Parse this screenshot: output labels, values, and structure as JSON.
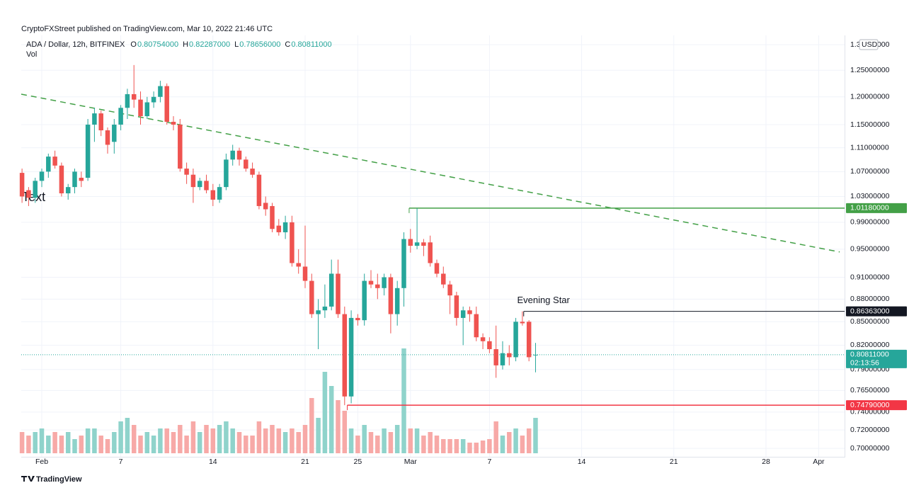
{
  "header": {
    "published": "CryptoFXStreet published on TradingView.com, Mar 10, 2022 21:46 UTC",
    "symbol": "ADA / Dollar, 12h, BITFINEX",
    "ohlc": [
      {
        "key": "O",
        "value": "0.80754000"
      },
      {
        "key": "H",
        "value": "0.82287000"
      },
      {
        "key": "L",
        "value": "0.78656000"
      },
      {
        "key": "C",
        "value": "0.80811000"
      }
    ],
    "vol": "Vol",
    "currency": "USD",
    "footer": "TradingView"
  },
  "chart_data": {
    "type": "candlestick",
    "log_scale": true,
    "grid": true,
    "up_color": "#26a69a",
    "down_color": "#ef5350",
    "up_volume_color": "#8fd3cb",
    "down_volume_color": "#f7a9a7",
    "xlim": [
      -1.56,
      60.97
    ],
    "ylim": [
      0.691,
      1.3186
    ],
    "volume_lim": [
      0,
      160
    ],
    "xticks": [
      {
        "value": 0,
        "label": "Feb"
      },
      {
        "value": 6,
        "label": "7"
      },
      {
        "value": 13,
        "label": "14"
      },
      {
        "value": 20,
        "label": "21"
      },
      {
        "value": 24,
        "label": "25"
      },
      {
        "value": 28,
        "label": "Mar"
      },
      {
        "value": 34,
        "label": "7"
      },
      {
        "value": 41,
        "label": "14"
      },
      {
        "value": 48,
        "label": "21"
      },
      {
        "value": 55,
        "label": "28"
      },
      {
        "value": 59,
        "label": "Apr"
      }
    ],
    "yticks": [
      {
        "value": 1.3,
        "label": "1.30000000"
      },
      {
        "value": 1.25,
        "label": "1.25000000"
      },
      {
        "value": 1.2,
        "label": "1.20000000"
      },
      {
        "value": 1.15,
        "label": "1.15000000"
      },
      {
        "value": 1.11,
        "label": "1.11000000"
      },
      {
        "value": 1.07,
        "label": "1.07000000"
      },
      {
        "value": 1.03,
        "label": "1.03000000"
      },
      {
        "value": 0.99,
        "label": "0.99000000"
      },
      {
        "value": 0.95,
        "label": "0.95000000"
      },
      {
        "value": 0.91,
        "label": "0.91000000"
      },
      {
        "value": 0.88,
        "label": "0.88000000"
      },
      {
        "value": 0.85,
        "label": "0.85000000"
      },
      {
        "value": 0.82,
        "label": "0.82000000"
      },
      {
        "value": 0.79,
        "label": "0.79000000"
      },
      {
        "value": 0.765,
        "label": "0.76500000"
      },
      {
        "value": 0.74,
        "label": "0.74000000"
      },
      {
        "value": 0.72,
        "label": "0.72000000"
      },
      {
        "value": 0.7,
        "label": "0.70000000"
      }
    ],
    "x": [
      -1.5,
      -1,
      -0.5,
      0,
      0.5,
      1,
      1.5,
      2,
      2.5,
      3,
      3.5,
      4,
      4.5,
      5,
      5.5,
      6,
      6.5,
      7,
      7.5,
      8,
      8.5,
      9,
      9.5,
      10,
      10.5,
      11,
      11.5,
      12,
      12.5,
      13,
      13.5,
      14,
      14.5,
      15,
      15.5,
      16,
      16.5,
      17,
      17.5,
      18,
      18.5,
      19,
      19.5,
      20,
      20.5,
      21,
      21.5,
      22,
      22.5,
      23,
      23.5,
      24,
      24.5,
      25,
      25.5,
      26,
      26.5,
      27,
      27.5,
      28,
      28.5,
      29,
      29.5,
      30,
      30.5,
      31,
      31.5,
      32,
      32.5,
      33,
      33.5,
      34,
      34.5,
      35,
      35.5,
      36,
      36.5,
      37,
      37.5
    ],
    "open": [
      1.068,
      1.04,
      1.028,
      1.055,
      1.07,
      1.095,
      1.08,
      1.035,
      1.045,
      1.06,
      1.06,
      1.15,
      1.17,
      1.14,
      1.12,
      1.15,
      1.18,
      1.205,
      1.195,
      1.165,
      1.19,
      1.2,
      1.22,
      1.155,
      1.15,
      1.075,
      1.065,
      1.045,
      1.055,
      1.04,
      1.025,
      1.045,
      1.09,
      1.105,
      1.09,
      1.075,
      1.065,
      1.02,
      1.015,
      0.985,
      0.975,
      0.99,
      0.93,
      0.925,
      0.905,
      0.86,
      0.865,
      0.87,
      0.915,
      0.86,
      0.758,
      0.855,
      0.852,
      0.905,
      0.9,
      0.895,
      0.91,
      0.86,
      0.895,
      0.965,
      0.955,
      0.96,
      0.96,
      0.93,
      0.915,
      0.9,
      0.885,
      0.855,
      0.865,
      0.86,
      0.83,
      0.825,
      0.815,
      0.795,
      0.81,
      0.805,
      0.85,
      0.85,
      0.80754
    ],
    "high": [
      1.075,
      1.045,
      1.06,
      1.075,
      1.1,
      1.105,
      1.085,
      1.05,
      1.075,
      1.07,
      1.16,
      1.18,
      1.175,
      1.145,
      1.16,
      1.185,
      1.215,
      1.26,
      1.21,
      1.2,
      1.21,
      1.23,
      1.225,
      1.165,
      1.16,
      1.085,
      1.075,
      1.06,
      1.065,
      1.05,
      1.05,
      1.1,
      1.115,
      1.11,
      1.095,
      1.085,
      1.07,
      1.03,
      1.02,
      0.995,
      1.0,
      1.0,
      0.95,
      0.985,
      0.915,
      0.88,
      0.9,
      0.935,
      0.935,
      0.87,
      0.865,
      0.86,
      0.915,
      0.92,
      0.915,
      0.915,
      0.915,
      0.905,
      0.975,
      0.98,
      1.0118,
      0.965,
      0.97,
      0.935,
      0.925,
      0.905,
      0.89,
      0.87,
      0.87,
      0.87,
      0.835,
      0.83,
      0.845,
      0.825,
      0.82,
      0.855,
      0.86363,
      0.852,
      0.82287
    ],
    "low": [
      1.02,
      1.015,
      1.02,
      1.045,
      1.06,
      1.075,
      1.03,
      1.025,
      1.035,
      1.045,
      1.055,
      1.12,
      1.13,
      1.1,
      1.1,
      1.14,
      1.16,
      1.18,
      1.15,
      1.16,
      1.18,
      1.19,
      1.15,
      1.14,
      1.07,
      1.05,
      1.02,
      1.04,
      1.035,
      1.015,
      1.02,
      1.04,
      1.08,
      1.08,
      1.07,
      1.06,
      1.01,
      1.0,
      0.975,
      0.97,
      0.965,
      0.925,
      0.915,
      0.895,
      0.855,
      0.815,
      0.855,
      0.865,
      0.855,
      0.7479,
      0.75,
      0.845,
      0.845,
      0.895,
      0.88,
      0.885,
      0.835,
      0.845,
      0.87,
      0.945,
      0.95,
      0.94,
      0.925,
      0.91,
      0.895,
      0.86,
      0.845,
      0.82,
      0.85,
      0.825,
      0.815,
      0.81,
      0.78,
      0.79,
      0.795,
      0.8,
      0.845,
      0.8,
      0.78656
    ],
    "close": [
      1.03,
      1.028,
      1.055,
      1.07,
      1.095,
      1.08,
      1.035,
      1.045,
      1.07,
      1.055,
      1.15,
      1.17,
      1.14,
      1.115,
      1.15,
      1.18,
      1.205,
      1.195,
      1.165,
      1.19,
      1.2,
      1.22,
      1.155,
      1.15,
      1.075,
      1.065,
      1.045,
      1.055,
      1.04,
      1.025,
      1.045,
      1.09,
      1.105,
      1.09,
      1.075,
      1.065,
      1.015,
      1.01,
      0.98,
      0.975,
      0.99,
      0.93,
      0.925,
      0.905,
      0.86,
      0.865,
      0.87,
      0.915,
      0.86,
      0.758,
      0.855,
      0.852,
      0.905,
      0.9,
      0.895,
      0.91,
      0.86,
      0.895,
      0.965,
      0.955,
      0.96,
      0.955,
      0.93,
      0.915,
      0.9,
      0.885,
      0.855,
      0.865,
      0.86,
      0.83,
      0.825,
      0.815,
      0.795,
      0.81,
      0.805,
      0.85,
      0.848,
      0.805,
      0.80811
    ],
    "volume": [
      30,
      25,
      30,
      35,
      25,
      30,
      25,
      30,
      20,
      25,
      35,
      35,
      25,
      20,
      30,
      45,
      50,
      40,
      25,
      30,
      25,
      35,
      35,
      30,
      40,
      25,
      45,
      30,
      40,
      35,
      40,
      45,
      35,
      30,
      25,
      25,
      45,
      35,
      40,
      35,
      30,
      35,
      30,
      40,
      78,
      50,
      115,
      95,
      75,
      60,
      35,
      25,
      40,
      30,
      25,
      35,
      30,
      40,
      148,
      35,
      35,
      25,
      30,
      25,
      20,
      20,
      20,
      20,
      15,
      15,
      18,
      20,
      45,
      25,
      30,
      35,
      25,
      35,
      50
    ],
    "trendline": {
      "x": [
        -1.56,
        60.6
      ],
      "y": [
        1.205,
        0.946
      ],
      "color": "#43a047"
    },
    "levels": [
      {
        "value": 1.0118,
        "label": "1.01180000",
        "start": 27.9,
        "color": "#43a047"
      },
      {
        "value": 0.86363,
        "label": "0.86363000",
        "start": 36.6,
        "color": "#131722"
      },
      {
        "value": 0.7479,
        "label": "0.74790000",
        "start": 23.2,
        "color": "#f23645"
      }
    ],
    "last_price": {
      "value": 0.80811,
      "label": "0.80811000",
      "countdown": "02:13:56",
      "color": "#26a69a"
    },
    "annotations": [
      {
        "text": "Evening Star",
        "x": 36.1,
        "y": 0.878
      },
      {
        "text": "Text",
        "x": -1.5,
        "y": 1.028
      }
    ]
  }
}
